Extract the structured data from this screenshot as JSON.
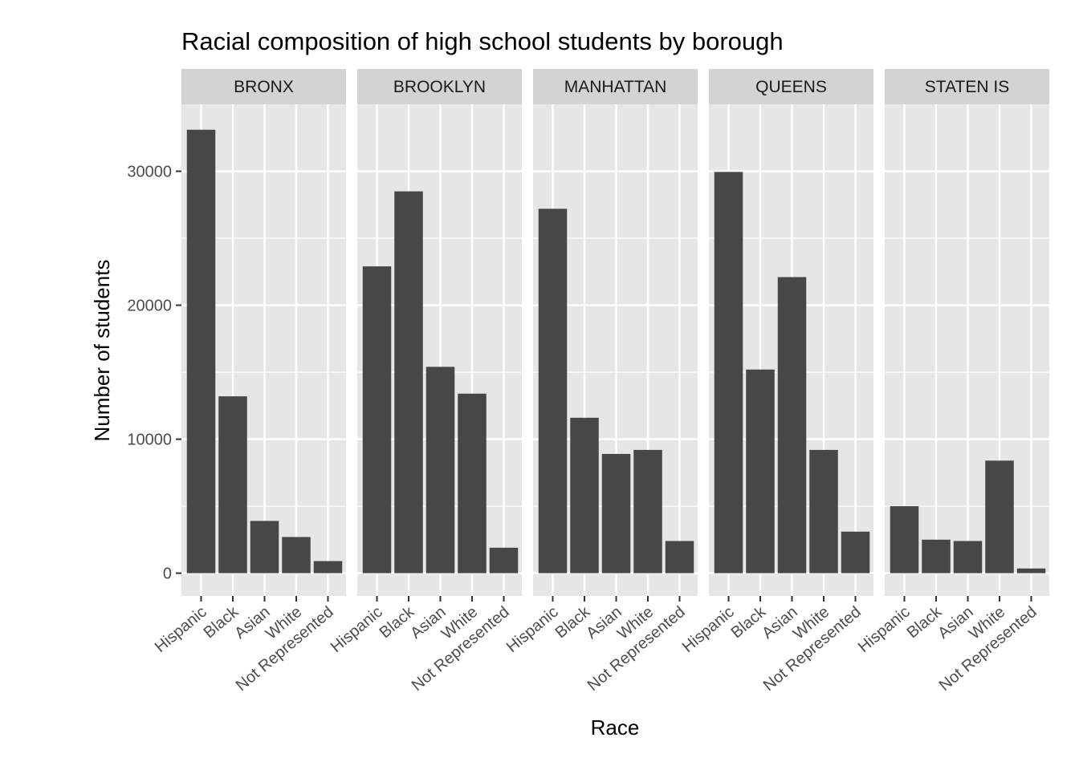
{
  "chart_data": {
    "type": "bar",
    "title": "Racial composition of high school students by borough",
    "xlabel": "Race",
    "ylabel": "Number of students",
    "ylim": [
      -1700,
      35000
    ],
    "yticks": [
      0,
      10000,
      20000,
      30000
    ],
    "ytick_labels": [
      "0",
      "10000",
      "20000",
      "30000"
    ],
    "minor_yticks": [
      5000,
      15000,
      25000
    ],
    "grid": true,
    "categories": [
      "Hispanic",
      "Black",
      "Asian",
      "White",
      "Not Represented"
    ],
    "bar_color": "#474747",
    "panel_background": "#e6e6e6",
    "strip_background": "#d3d3d3",
    "facets": [
      {
        "name": "BRONX",
        "values": [
          33100,
          13200,
          3900,
          2700,
          900
        ]
      },
      {
        "name": "BROOKLYN",
        "values": [
          22900,
          28500,
          15400,
          13400,
          1900
        ]
      },
      {
        "name": "MANHATTAN",
        "values": [
          27200,
          11600,
          8900,
          9200,
          2400
        ]
      },
      {
        "name": "QUEENS",
        "values": [
          29950,
          15200,
          22100,
          9200,
          3100
        ]
      },
      {
        "name": "STATEN IS",
        "values": [
          5000,
          2500,
          2400,
          8400,
          350
        ]
      }
    ]
  }
}
